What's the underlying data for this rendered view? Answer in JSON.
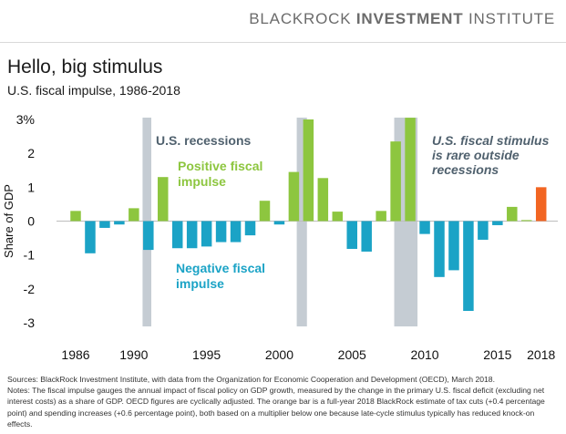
{
  "header": {
    "brand_regular": "BLACKROCK ",
    "brand_bold": "INVESTMENT",
    "brand_suffix": " INSTITUTE"
  },
  "title": "Hello, big stimulus",
  "subtitle": "U.S. fiscal impulse, 1986-2018",
  "colors": {
    "positive": "#8dc63f",
    "negative": "#1ba3c6",
    "estimate": "#f26522",
    "recession": "#c5ccd3",
    "annotation": "#50616e"
  },
  "chart_data": {
    "type": "bar",
    "ylabel": "Share of GDP",
    "ylim": [
      -3,
      3
    ],
    "yticks": [
      "3%",
      "2",
      "1",
      "0",
      "-1",
      "-2",
      "-3"
    ],
    "xticks": [
      "1986",
      "1990",
      "1995",
      "2000",
      "2005",
      "2010",
      "2015",
      "2018"
    ],
    "categories": [
      "1986",
      "1987",
      "1988",
      "1989",
      "1990",
      "1991",
      "1992",
      "1993",
      "1994",
      "1995",
      "1996",
      "1997",
      "1998",
      "1999",
      "2000",
      "2001",
      "2002",
      "2003",
      "2004",
      "2005",
      "2006",
      "2007",
      "2008",
      "2009",
      "2010",
      "2011",
      "2012",
      "2013",
      "2014",
      "2015",
      "2016",
      "2017",
      "2018"
    ],
    "values": [
      0.3,
      -0.95,
      -0.2,
      -0.1,
      0.38,
      -0.85,
      1.3,
      -0.8,
      -0.8,
      -0.75,
      -0.62,
      -0.62,
      -0.42,
      0.6,
      -0.1,
      1.45,
      3.0,
      1.27,
      0.28,
      -0.82,
      -0.9,
      0.3,
      2.35,
      3.05,
      -0.38,
      -1.65,
      -1.45,
      -2.65,
      -0.55,
      -0.12,
      0.42,
      0.03,
      1.0
    ],
    "estimate_category": "2018",
    "recessions": [
      {
        "start": 1990.6,
        "end": 1991.2
      },
      {
        "start": 2001.2,
        "end": 2001.9
      },
      {
        "start": 2007.9,
        "end": 2009.5
      }
    ],
    "annotations": {
      "recessions": "U.S. recessions",
      "positive": [
        "Positive fiscal",
        "impulse"
      ],
      "negative": [
        "Negative fiscal",
        "impulse"
      ],
      "rare": [
        "U.S. fiscal stimulus",
        "is rare outside",
        "recessions"
      ]
    }
  },
  "notes": {
    "sources": "Sources: BlackRock Investment Institute, with data from the Organization for Economic Cooperation and Development (OECD), March 2018.",
    "notes": "Notes: The fiscal impulse gauges the annual impact of fiscal policy on GDP growth, measured by the change in the primary U.S. fiscal deficit (excluding net interest costs) as a share of GDP. OECD figures are cyclically adjusted. The orange bar is a full-year 2018 BlackRock estimate of tax cuts (+0.4 percentage point) and spending increases (+0.6 percentage point), both based on a multiplier below one because late-cycle stimulus typically has reduced knock-on effects."
  }
}
